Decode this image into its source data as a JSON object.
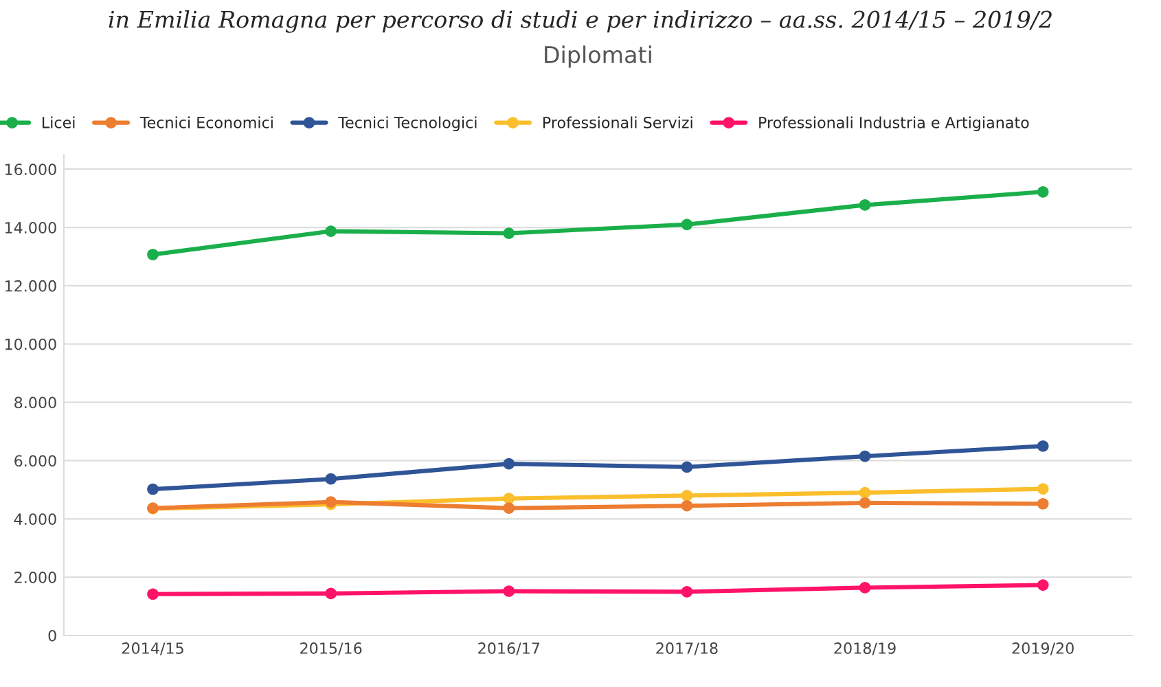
{
  "chart_data": {
    "type": "line",
    "title": "Diplomati",
    "annotations": [
      "in Emilia Romagna per percorso di studi e per indirizzo – aa.ss. 2014/15 – 2019/2"
    ],
    "categories": [
      "2014/15",
      "2015/16",
      "2016/17",
      "2017/18",
      "2018/19",
      "2019/20"
    ],
    "series": [
      {
        "name": "Licei",
        "color": "#1aaf4b",
        "values": [
          13070,
          13870,
          13800,
          14100,
          14770,
          15220
        ]
      },
      {
        "name": "Tecnici Economici",
        "color": "#ed7d31",
        "values": [
          4370,
          4580,
          4370,
          4450,
          4550,
          4520
        ]
      },
      {
        "name": "Tecnici Tecnologici",
        "color": "#2f5597",
        "values": [
          5020,
          5370,
          5890,
          5780,
          6150,
          6500
        ]
      },
      {
        "name": "Professionali Servizi",
        "color": "#fbbf2d",
        "values": [
          4350,
          4500,
          4700,
          4800,
          4900,
          5030
        ]
      },
      {
        "name": "Professionali Industria e Artigianato",
        "color": "#ff1368",
        "values": [
          1420,
          1440,
          1520,
          1500,
          1640,
          1730
        ]
      }
    ],
    "ylim": [
      0,
      16500
    ],
    "yticks": [
      0,
      {
        "value": 2000,
        "label": "2.000"
      },
      {
        "value": 4000,
        "label": "4.000"
      },
      {
        "value": 6000,
        "label": "6.000"
      },
      {
        "value": 8000,
        "label": "8.000"
      },
      {
        "value": 10000,
        "label": "10.000"
      },
      {
        "value": 12000,
        "label": "12.000"
      },
      {
        "value": 14000,
        "label": "14.000"
      },
      {
        "value": 16000,
        "label": "16.000"
      }
    ],
    "grid": "y",
    "legend": "top",
    "marker": "circle",
    "line_style": "solid"
  }
}
